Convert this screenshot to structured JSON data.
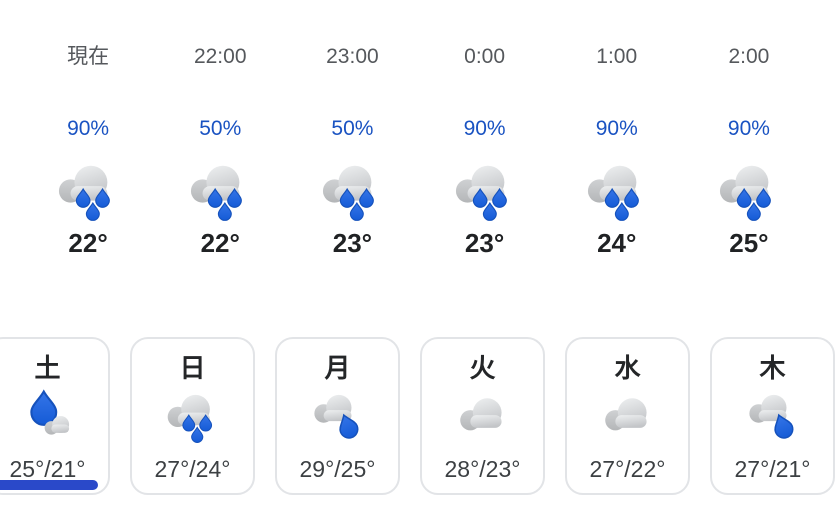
{
  "colors": {
    "background": "#ffffff",
    "precip_text_blue": "#1a53c2",
    "selected_indicator_blue": "#2a49c9",
    "raindrop_blue": "#2166e3",
    "cloud_gray": "#d3d5d7",
    "time_text_gray": "#55585c",
    "temp_text_dark": "#202224",
    "card_border": "#e2e4e7"
  },
  "hourly": {
    "items": [
      {
        "time": "現在",
        "precip": "90%",
        "icon": "rain",
        "temp": "22°"
      },
      {
        "time": "22:00",
        "precip": "50%",
        "icon": "rain",
        "temp": "22°"
      },
      {
        "time": "23:00",
        "precip": "50%",
        "icon": "rain",
        "temp": "23°"
      },
      {
        "time": "0:00",
        "precip": "90%",
        "icon": "rain",
        "temp": "23°"
      },
      {
        "time": "1:00",
        "precip": "90%",
        "icon": "rain",
        "temp": "24°"
      },
      {
        "time": "2:00",
        "precip": "90%",
        "icon": "rain",
        "temp": "25°"
      }
    ]
  },
  "daily": {
    "items": [
      {
        "day": "土",
        "icon": "drop-cloud",
        "temp": "25°/21°",
        "selected": true
      },
      {
        "day": "日",
        "icon": "rain",
        "temp": "27°/24°",
        "selected": false
      },
      {
        "day": "月",
        "icon": "cloud-drop",
        "temp": "29°/25°",
        "selected": false
      },
      {
        "day": "火",
        "icon": "cloud",
        "temp": "28°/23°",
        "selected": false
      },
      {
        "day": "水",
        "icon": "cloud",
        "temp": "27°/22°",
        "selected": false
      },
      {
        "day": "木",
        "icon": "cloud-drop",
        "temp": "27°/21°",
        "selected": false
      }
    ]
  }
}
